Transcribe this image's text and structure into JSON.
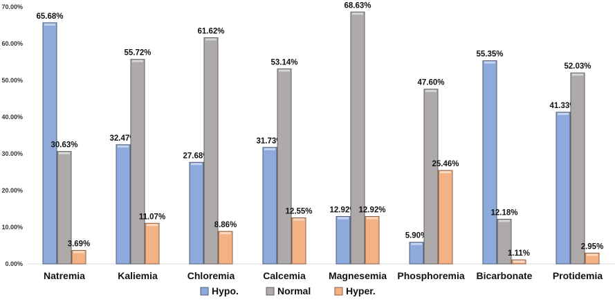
{
  "chart_data": {
    "type": "bar",
    "title": "",
    "xlabel": "",
    "ylabel": "",
    "ylim": [
      0,
      70
    ],
    "yticks": [
      "0.00%",
      "10.00%",
      "20.00%",
      "30.00%",
      "40.00%",
      "50.00%",
      "60.00%",
      "70.00%"
    ],
    "categories": [
      "Natremia",
      "Kaliemia",
      "Chloremia",
      "Calcemia",
      "Magnesemia",
      "Phosphoremia",
      "Bicarbonate",
      "Protidemia"
    ],
    "series": [
      {
        "name": "Hypo.",
        "color": "#8EA9DB",
        "values": [
          65.68,
          32.47,
          27.68,
          31.73,
          12.92,
          5.9,
          55.35,
          41.33
        ]
      },
      {
        "name": "Normal",
        "color": "#AEAAAA",
        "values": [
          30.63,
          55.72,
          61.62,
          53.14,
          68.63,
          47.6,
          12.18,
          52.03
        ]
      },
      {
        "name": "Hyper.",
        "color": "#F4B183",
        "values": [
          3.69,
          11.07,
          8.86,
          12.55,
          12.92,
          25.46,
          1.11,
          2.95
        ]
      }
    ],
    "legend_position": "bottom",
    "grid": false
  }
}
